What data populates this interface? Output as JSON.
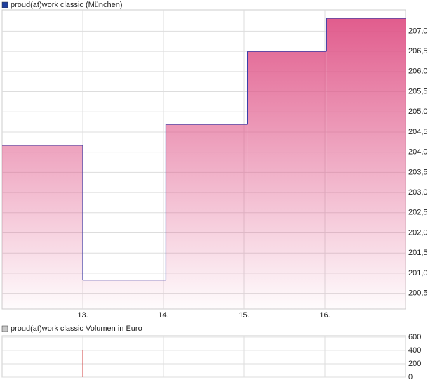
{
  "chart_data": [
    {
      "type": "step",
      "title": "proud(at)work classic (München)",
      "legend_color": "#1f3f9f",
      "x": [
        12.0,
        13.0,
        14.03,
        15.04,
        16.02
      ],
      "xlim": [
        12,
        17
      ],
      "xticks": [
        {
          "value": 13,
          "label": "13."
        },
        {
          "value": 14,
          "label": "14."
        },
        {
          "value": 15,
          "label": "15."
        },
        {
          "value": 16,
          "label": "16."
        }
      ],
      "series": [
        {
          "name": "proud(at)work classic (München)",
          "color": "#3a3fa8",
          "fill": "#e0588a",
          "values": [
            204.17,
            200.83,
            204.69,
            206.5,
            207.32
          ]
        }
      ],
      "ylim": [
        200.11,
        207.53
      ],
      "yticks": [
        {
          "value": 200.5,
          "label": "200,5"
        },
        {
          "value": 201.0,
          "label": "201,0"
        },
        {
          "value": 201.5,
          "label": "201,5"
        },
        {
          "value": 202.0,
          "label": "202,0"
        },
        {
          "value": 202.5,
          "label": "202,5"
        },
        {
          "value": 203.0,
          "label": "203,0"
        },
        {
          "value": 203.5,
          "label": "203,5"
        },
        {
          "value": 204.0,
          "label": "204,0"
        },
        {
          "value": 204.5,
          "label": "204,5"
        },
        {
          "value": 205.0,
          "label": "205,0"
        },
        {
          "value": 205.5,
          "label": "205,5"
        },
        {
          "value": 206.0,
          "label": "206,0"
        },
        {
          "value": 206.5,
          "label": "206,5"
        },
        {
          "value": 207.0,
          "label": "207,0"
        }
      ],
      "grid": true
    },
    {
      "type": "bar",
      "title": "proud(at)work classic Volumen in Euro",
      "legend_color": "#c8c8c8",
      "x": [
        13.0
      ],
      "xlim": [
        12,
        17
      ],
      "xticks": [
        13,
        14,
        15,
        16
      ],
      "series": [
        {
          "name": "proud(at)work classic Volumen in Euro",
          "color": "#d04040",
          "values": [
            410
          ]
        }
      ],
      "ylim": [
        0,
        620
      ],
      "yticks": [
        0,
        200,
        400,
        600
      ],
      "grid": true
    }
  ]
}
